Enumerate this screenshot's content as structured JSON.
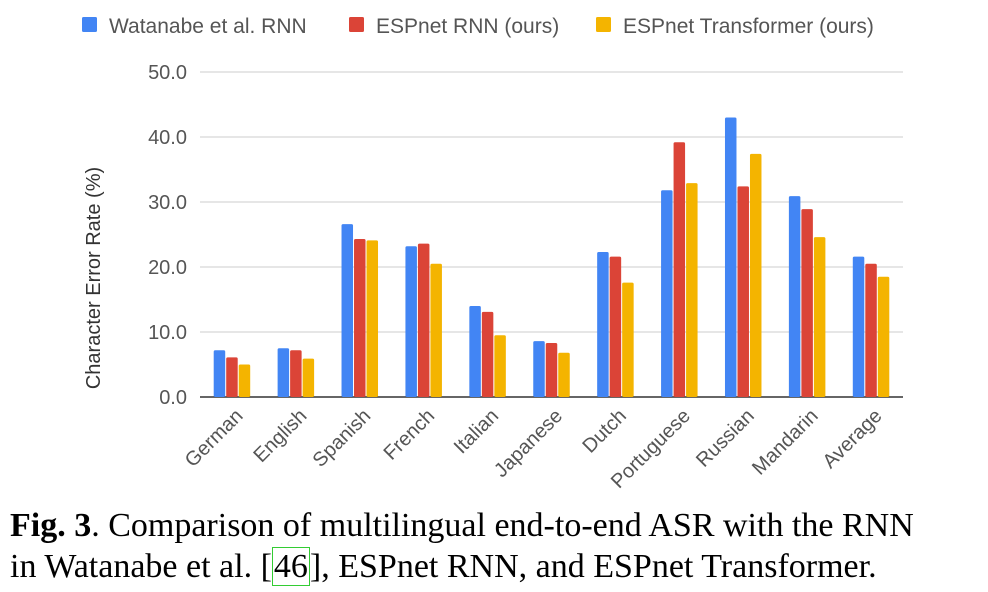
{
  "chart_data": {
    "type": "bar",
    "categories": [
      "German",
      "English",
      "Spanish",
      "French",
      "Italian",
      "Japanese",
      "Dutch",
      "Portuguese",
      "Russian",
      "Mandarin",
      "Average"
    ],
    "series": [
      {
        "name": "Watanabe et al. RNN",
        "color": "#4285f4",
        "values": [
          7.2,
          7.5,
          26.6,
          23.2,
          14.0,
          8.6,
          22.3,
          31.8,
          43.0,
          30.9,
          21.6
        ]
      },
      {
        "name": "ESPnet RNN (ours)",
        "color": "#db4437",
        "values": [
          6.1,
          7.2,
          24.3,
          23.6,
          13.1,
          8.3,
          21.6,
          39.2,
          32.4,
          28.9,
          20.5
        ]
      },
      {
        "name": "ESPnet Transformer (ours)",
        "color": "#f4b400",
        "values": [
          5.0,
          5.9,
          24.1,
          20.5,
          9.5,
          6.8,
          17.6,
          32.9,
          37.4,
          24.6,
          18.5
        ]
      }
    ],
    "ylabel": "Character Error Rate (%)",
    "xlabel": "",
    "ylim": [
      0,
      50
    ],
    "yticks": [
      "0.0",
      "10.0",
      "20.0",
      "30.0",
      "40.0",
      "50.0"
    ],
    "grid": true,
    "legend_position": "top"
  },
  "caption": {
    "fig_label": "Fig. 3",
    "text_before_ref": ". Comparison of multilingual end-to-end ASR with the RNN",
    "line2_before_ref": "in Watanabe et al. [",
    "ref": "46",
    "line2_after_ref": "], ESPnet RNN, and ESPnet Transformer."
  }
}
